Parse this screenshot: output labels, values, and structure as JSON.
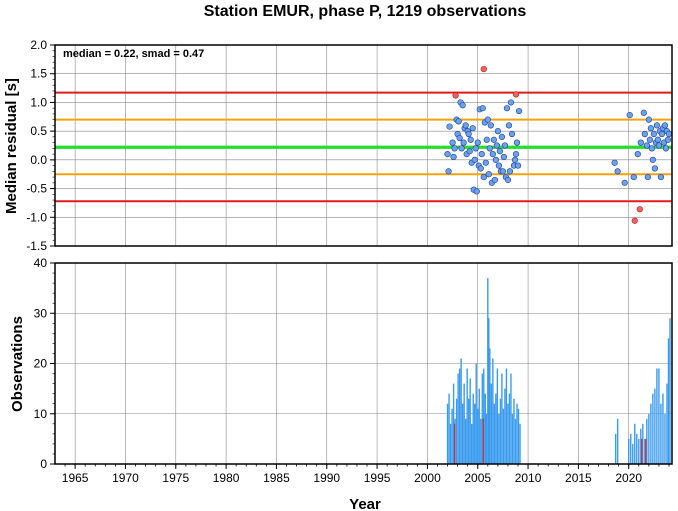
{
  "chart_data": [
    {
      "type": "scatter",
      "title": "Station EMUR, phase P, 1219 observations",
      "ylabel": "Median residual [s]",
      "xlim": [
        1963,
        2024.3
      ],
      "ylim": [
        -1.5,
        2.0
      ],
      "yticks": [
        "2.0",
        "1.5",
        "1.0",
        "0.5",
        "0.0",
        "-0.5",
        "-1.0",
        "-1.5"
      ],
      "grid": true,
      "annotation": "median = 0.22, smad = 0.47",
      "hlines": [
        {
          "y": 1.17,
          "color": "#e11a1a"
        },
        {
          "y": 0.7,
          "color": "#f5a20a"
        },
        {
          "y": 0.22,
          "color": "#22e02a"
        },
        {
          "y": -0.25,
          "color": "#f5a20a"
        },
        {
          "y": -0.72,
          "color": "#e11a1a"
        }
      ],
      "colors": {
        "point": "#6aa2ee",
        "outlier": "#f26060",
        "edge": "#1d3c99"
      },
      "points": [
        [
          2002.0,
          0.1
        ],
        [
          2002.1,
          -0.2
        ],
        [
          2002.2,
          0.58
        ],
        [
          2002.5,
          0.3
        ],
        [
          2002.6,
          0.05
        ],
        [
          2002.7,
          0.2
        ],
        [
          2002.9,
          0.7
        ],
        [
          2003.0,
          0.45
        ],
        [
          2003.1,
          0.67
        ],
        [
          2003.2,
          0.38
        ],
        [
          2003.3,
          1.0
        ],
        [
          2003.4,
          0.2
        ],
        [
          2003.5,
          0.95
        ],
        [
          2003.6,
          0.3
        ],
        [
          2003.7,
          0.55
        ],
        [
          2003.8,
          0.6
        ],
        [
          2003.9,
          0.1
        ],
        [
          2004.0,
          0.5
        ],
        [
          2004.1,
          0.45
        ],
        [
          2004.2,
          0.15
        ],
        [
          2004.3,
          0.35
        ],
        [
          2004.4,
          -0.05
        ],
        [
          2004.5,
          0.55
        ],
        [
          2004.6,
          -0.52
        ],
        [
          2004.7,
          0.0
        ],
        [
          2004.8,
          0.2
        ],
        [
          2004.9,
          -0.55
        ],
        [
          2005.0,
          0.3
        ],
        [
          2005.1,
          -0.1
        ],
        [
          2005.2,
          0.88
        ],
        [
          2005.3,
          -0.15
        ],
        [
          2005.4,
          0.1
        ],
        [
          2005.5,
          0.9
        ],
        [
          2005.6,
          -0.3
        ],
        [
          2005.7,
          0.65
        ],
        [
          2005.8,
          -0.05
        ],
        [
          2005.9,
          0.35
        ],
        [
          2006.0,
          0.7
        ],
        [
          2006.1,
          -0.25
        ],
        [
          2006.2,
          0.2
        ],
        [
          2006.3,
          0.6
        ],
        [
          2006.4,
          -0.4
        ],
        [
          2006.5,
          0.1
        ],
        [
          2006.6,
          0.35
        ],
        [
          2006.7,
          -0.35
        ],
        [
          2006.8,
          0.0
        ],
        [
          2006.9,
          0.25
        ],
        [
          2007.0,
          0.5
        ],
        [
          2007.1,
          -0.1
        ],
        [
          2007.2,
          0.15
        ],
        [
          2007.3,
          -0.2
        ],
        [
          2007.4,
          0.4
        ],
        [
          2007.5,
          -0.2
        ],
        [
          2007.6,
          0.05
        ],
        [
          2007.7,
          0.25
        ],
        [
          2007.8,
          -0.3
        ],
        [
          2007.9,
          0.9
        ],
        [
          2008.0,
          -0.35
        ],
        [
          2008.1,
          0.6
        ],
        [
          2008.2,
          -0.2
        ],
        [
          2008.3,
          1.0
        ],
        [
          2008.4,
          0.45
        ],
        [
          2008.6,
          -0.1
        ],
        [
          2008.7,
          0.0
        ],
        [
          2008.8,
          0.1
        ],
        [
          2008.9,
          0.3
        ],
        [
          2009.0,
          -0.1
        ],
        [
          2009.1,
          0.85
        ],
        [
          2018.6,
          -0.05
        ],
        [
          2018.9,
          -0.2
        ],
        [
          2019.6,
          -0.4
        ],
        [
          2020.1,
          0.78
        ],
        [
          2020.5,
          -0.3
        ],
        [
          2020.9,
          0.1
        ],
        [
          2021.2,
          0.3
        ],
        [
          2021.5,
          0.82
        ],
        [
          2021.6,
          0.45
        ],
        [
          2021.8,
          0.25
        ],
        [
          2021.9,
          -0.3
        ],
        [
          2022.0,
          0.7
        ],
        [
          2022.1,
          0.35
        ],
        [
          2022.2,
          0.55
        ],
        [
          2022.3,
          0.2
        ],
        [
          2022.4,
          0.0
        ],
        [
          2022.5,
          0.45
        ],
        [
          2022.6,
          -0.15
        ],
        [
          2022.7,
          0.3
        ],
        [
          2022.8,
          0.6
        ],
        [
          2022.9,
          0.35
        ],
        [
          2023.0,
          0.25
        ],
        [
          2023.1,
          0.5
        ],
        [
          2023.2,
          -0.3
        ],
        [
          2023.3,
          0.45
        ],
        [
          2023.4,
          0.55
        ],
        [
          2023.5,
          0.3
        ],
        [
          2023.6,
          0.6
        ],
        [
          2023.7,
          0.2
        ],
        [
          2023.8,
          0.5
        ],
        [
          2023.9,
          0.35
        ],
        [
          2024.0,
          0.45
        ]
      ],
      "outliers": [
        [
          2002.8,
          1.12
        ],
        [
          2005.6,
          1.58
        ],
        [
          2008.8,
          1.14
        ],
        [
          2020.6,
          -1.06
        ],
        [
          2021.1,
          -0.86
        ]
      ]
    },
    {
      "type": "bar",
      "xlabel": "Year",
      "ylabel": "Observations",
      "xlim": [
        1963,
        2024.3
      ],
      "ylim": [
        0,
        40
      ],
      "yticks": [
        "40",
        "30",
        "20",
        "10",
        "0"
      ],
      "xticks": [
        "1965",
        "1970",
        "1975",
        "1980",
        "1985",
        "1990",
        "1995",
        "2000",
        "2005",
        "2010",
        "2015",
        "2020"
      ],
      "grid": true,
      "colors": {
        "bar": "#3a9bee",
        "red_bar": "#d42a2a"
      },
      "bars": [
        [
          2002.0,
          12
        ],
        [
          2002.15,
          14
        ],
        [
          2002.3,
          8
        ],
        [
          2002.45,
          11
        ],
        [
          2002.6,
          16
        ],
        [
          2002.75,
          9
        ],
        [
          2002.9,
          13
        ],
        [
          2003.05,
          18
        ],
        [
          2003.2,
          19
        ],
        [
          2003.35,
          21
        ],
        [
          2003.5,
          12
        ],
        [
          2003.65,
          16
        ],
        [
          2003.8,
          9
        ],
        [
          2003.95,
          19
        ],
        [
          2004.1,
          13
        ],
        [
          2004.25,
          17
        ],
        [
          2004.4,
          8
        ],
        [
          2004.55,
          14
        ],
        [
          2004.7,
          12
        ],
        [
          2004.85,
          20
        ],
        [
          2005.0,
          11
        ],
        [
          2005.15,
          15
        ],
        [
          2005.3,
          9
        ],
        [
          2005.45,
          18
        ],
        [
          2005.6,
          19
        ],
        [
          2005.75,
          14
        ],
        [
          2005.85,
          10
        ],
        [
          2006.0,
          37
        ],
        [
          2006.1,
          29
        ],
        [
          2006.2,
          23
        ],
        [
          2006.35,
          16
        ],
        [
          2006.5,
          21
        ],
        [
          2006.65,
          12
        ],
        [
          2006.8,
          14
        ],
        [
          2006.95,
          19
        ],
        [
          2007.1,
          10
        ],
        [
          2007.25,
          13
        ],
        [
          2007.4,
          18
        ],
        [
          2007.55,
          11
        ],
        [
          2007.7,
          15
        ],
        [
          2007.85,
          19
        ],
        [
          2008.0,
          12
        ],
        [
          2008.15,
          14
        ],
        [
          2008.3,
          18
        ],
        [
          2008.45,
          10
        ],
        [
          2008.6,
          13
        ],
        [
          2008.75,
          9
        ],
        [
          2008.9,
          12
        ],
        [
          2009.05,
          11
        ],
        [
          2009.2,
          8
        ],
        [
          2018.7,
          6
        ],
        [
          2018.9,
          9
        ],
        [
          2020.0,
          5
        ],
        [
          2020.2,
          6
        ],
        [
          2020.4,
          4
        ],
        [
          2020.6,
          8
        ],
        [
          2020.8,
          6
        ],
        [
          2021.0,
          5
        ],
        [
          2021.2,
          7
        ],
        [
          2021.4,
          8
        ],
        [
          2021.6,
          5
        ],
        [
          2021.8,
          9
        ],
        [
          2022.0,
          10
        ],
        [
          2022.2,
          12
        ],
        [
          2022.4,
          14
        ],
        [
          2022.6,
          15
        ],
        [
          2022.8,
          19
        ],
        [
          2023.0,
          19
        ],
        [
          2023.2,
          12
        ],
        [
          2023.4,
          14
        ],
        [
          2023.6,
          10
        ],
        [
          2023.8,
          16
        ],
        [
          2023.95,
          25
        ],
        [
          2024.1,
          29
        ]
      ],
      "red_bars": [
        [
          2002.7,
          8
        ],
        [
          2005.55,
          9
        ],
        [
          2021.3,
          5
        ],
        [
          2021.7,
          5
        ]
      ]
    }
  ]
}
